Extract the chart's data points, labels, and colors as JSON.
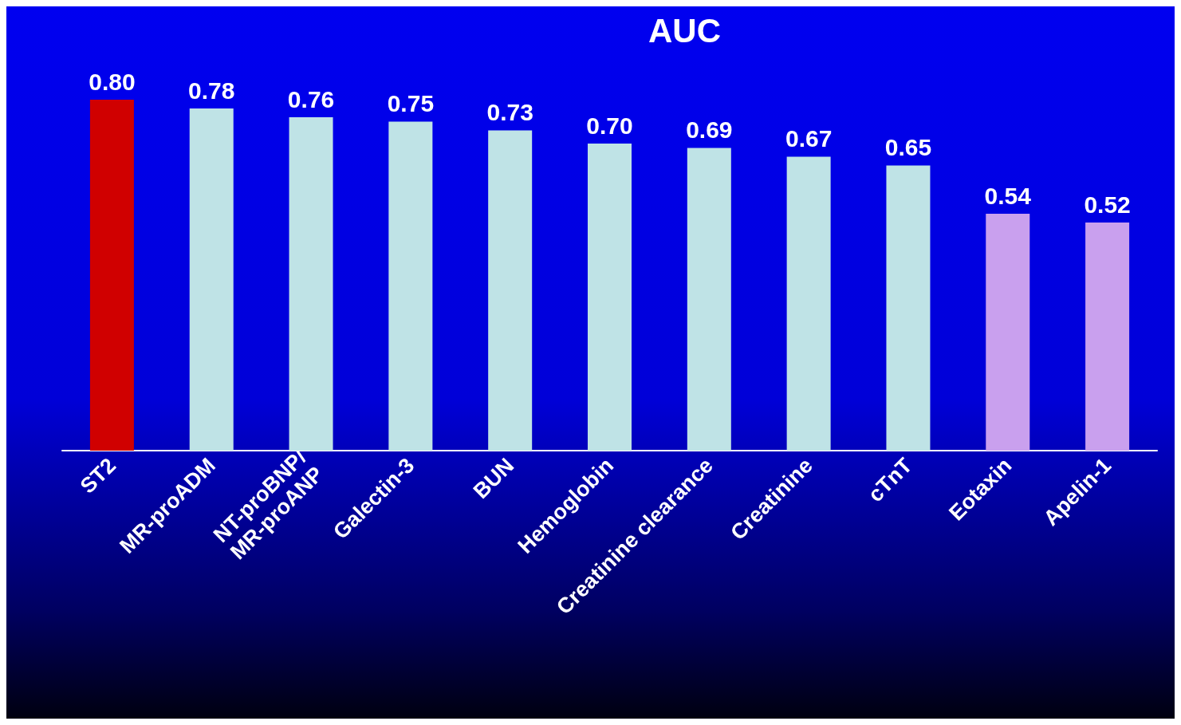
{
  "chart_data": {
    "type": "bar",
    "title": "AUC",
    "categories": [
      "ST2",
      "MR-proADM",
      "NT-proBNP/\nMR-proANP",
      "Galectin-3",
      "BUN",
      "Hemoglobin",
      "Creatinine clearance",
      "Creatinine",
      "cTnT",
      "Eotaxin",
      "Apelin-1"
    ],
    "values": [
      0.8,
      0.78,
      0.76,
      0.75,
      0.73,
      0.7,
      0.69,
      0.67,
      0.65,
      0.54,
      0.52
    ],
    "colors": [
      "#d00000",
      "#bfe3e6",
      "#bfe3e6",
      "#bfe3e6",
      "#bfe3e6",
      "#bfe3e6",
      "#bfe3e6",
      "#bfe3e6",
      "#bfe3e6",
      "#c9a0ee",
      "#c9a0ee"
    ],
    "value_labels": [
      "0.80",
      "0.78",
      "0.76",
      "0.75",
      "0.73",
      "0.70",
      "0.69",
      "0.67",
      "0.65",
      "0.54",
      "0.52"
    ]
  }
}
